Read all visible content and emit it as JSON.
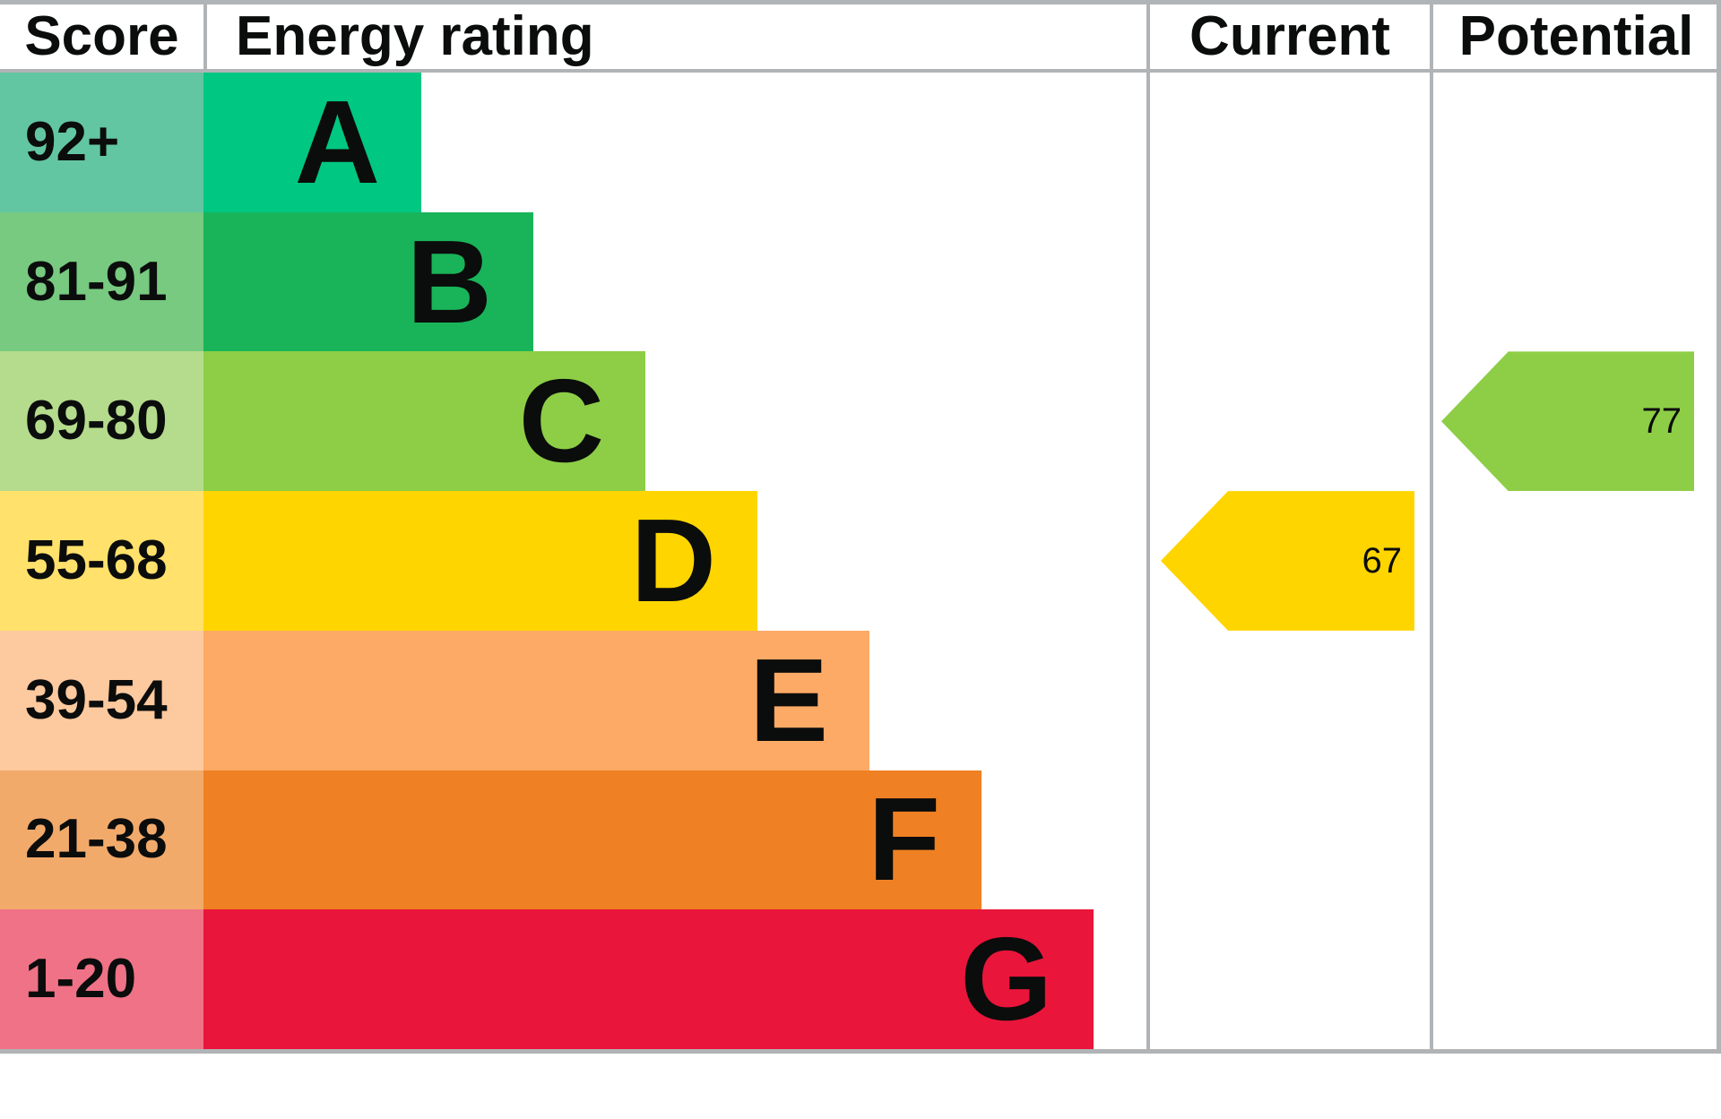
{
  "chart_data": {
    "type": "bar",
    "variant": "epc-energy-rating",
    "title": "",
    "columns": {
      "score": "Score",
      "rating": "Energy rating",
      "current": "Current",
      "potential": "Potential"
    },
    "bands": [
      {
        "letter": "A",
        "score": "92+",
        "color": "#00c781",
        "tint": "#63c6a3"
      },
      {
        "letter": "B",
        "score": "81-91",
        "color": "#19b459",
        "tint": "#77ca80"
      },
      {
        "letter": "C",
        "score": "69-80",
        "color": "#8dce46",
        "tint": "#b5dc8d"
      },
      {
        "letter": "D",
        "score": "55-68",
        "color": "#ffd500",
        "tint": "#ffe16b"
      },
      {
        "letter": "E",
        "score": "39-54",
        "color": "#fcaa65",
        "tint": "#fdc99e"
      },
      {
        "letter": "F",
        "score": "21-38",
        "color": "#ef8023",
        "tint": "#f2aa6b"
      },
      {
        "letter": "G",
        "score": "1-20",
        "color": "#e9153b",
        "tint": "#ef7286"
      }
    ],
    "current": {
      "value": "67",
      "band": "D",
      "color": "#ffd500"
    },
    "potential": {
      "value": "77",
      "band": "C",
      "color": "#8dce46"
    },
    "legend_position": "none",
    "grid": "column-borders-only"
  },
  "colors": {
    "border": "#b1b4b6",
    "text": "#0b0c0c",
    "background": "#ffffff"
  }
}
